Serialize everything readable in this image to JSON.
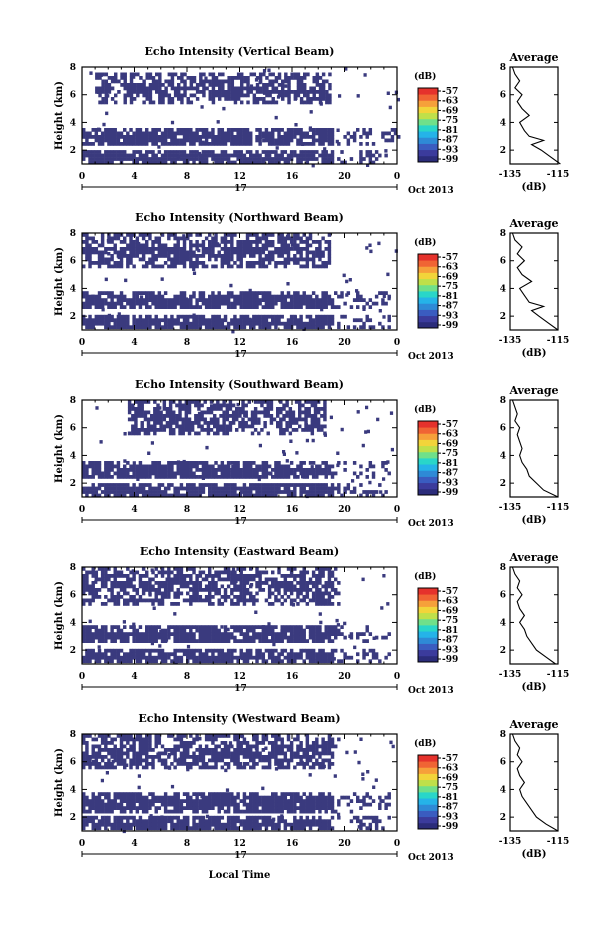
{
  "figure": {
    "xlabel": "Local Time",
    "day_label": "17",
    "month_label": "Oct 2013"
  },
  "colorbar": {
    "unit": "(dB)",
    "ticks": [
      "-57",
      "-63",
      "-69",
      "-75",
      "-81",
      "-87",
      "-93",
      "-99"
    ],
    "colors": [
      "#2b2c7a",
      "#3b3b9c",
      "#3a5cc0",
      "#2e8ad6",
      "#25b3e8",
      "#29d6c9",
      "#6fe08a",
      "#bfe04a",
      "#f2d43a",
      "#f6a03a",
      "#f06434",
      "#e5322c"
    ]
  },
  "panels": [
    {
      "title": "Echo Intensity (Vertical Beam)",
      "seed": 11
    },
    {
      "title": "Echo Intensity (Northward Beam)",
      "seed": 23
    },
    {
      "title": "Echo Intensity (Southward Beam)",
      "seed": 37
    },
    {
      "title": "Echo Intensity (Eastward Beam)",
      "seed": 41
    },
    {
      "title": "Echo Intensity (Westward Beam)",
      "seed": 53
    }
  ],
  "chart_data": [
    {
      "type": "heatmap",
      "title": "Echo Intensity (Vertical Beam)",
      "xlabel": "Local Time",
      "ylabel": "Height (km)",
      "xlim": [
        0,
        24
      ],
      "ylim": [
        1,
        8
      ],
      "xticks": [
        "0",
        "4",
        "8",
        "12",
        "16",
        "20",
        "0"
      ],
      "yticks": [
        "2",
        "4",
        "6",
        "8"
      ],
      "colorbar": {
        "label": "(dB)",
        "range": [
          -99,
          -57
        ]
      },
      "layers": [
        {
          "name": "upper echo layer",
          "height_km": [
            5.4,
            7.6
          ],
          "time_h": [
            1,
            18.8
          ],
          "value_db": -99
        },
        {
          "name": "middle echo layer",
          "height_km": [
            2.4,
            3.6
          ],
          "time_h": [
            0,
            24
          ],
          "value_db": -99
        },
        {
          "name": "lower echo layer",
          "height_km": [
            1.2,
            2.0
          ],
          "time_h": [
            0,
            23.5
          ],
          "value_db": -99
        }
      ],
      "average_profile": {
        "title": "Average",
        "xlabel": "(dB)",
        "xlim": [
          -135,
          -115
        ],
        "ylim": [
          1,
          8
        ],
        "xticks": [
          "-135",
          "-115"
        ],
        "yticks": [
          "2",
          "4",
          "6",
          "8"
        ],
        "height_km": [
          1,
          1.5,
          2,
          2.4,
          2.7,
          3.0,
          3.4,
          4.0,
          4.5,
          5.0,
          5.5,
          6.0,
          6.5,
          7.0,
          7.5,
          8.0
        ],
        "value_db": [
          -114,
          -118,
          -122,
          -126,
          -121,
          -127,
          -129,
          -131,
          -127,
          -130,
          -132,
          -130,
          -133,
          -131,
          -133,
          -134
        ]
      }
    },
    {
      "type": "heatmap",
      "title": "Echo Intensity (Northward Beam)",
      "xlabel": "Local Time",
      "ylabel": "Height (km)",
      "xlim": [
        0,
        24
      ],
      "ylim": [
        1,
        8
      ],
      "xticks": [
        "0",
        "4",
        "8",
        "12",
        "16",
        "20",
        "0"
      ],
      "yticks": [
        "2",
        "4",
        "6",
        "8"
      ],
      "colorbar": {
        "label": "(dB)",
        "range": [
          -99,
          -57
        ]
      },
      "layers": [
        {
          "name": "upper echo layer",
          "height_km": [
            5.5,
            8.0
          ],
          "time_h": [
            0,
            18.8
          ],
          "value_db": -99
        },
        {
          "name": "middle echo layer",
          "height_km": [
            2.6,
            3.8
          ],
          "time_h": [
            0,
            23.5
          ],
          "value_db": -99
        },
        {
          "name": "lower echo layer",
          "height_km": [
            1.2,
            2.1
          ],
          "time_h": [
            0,
            23.5
          ],
          "value_db": -99
        }
      ],
      "average_profile": {
        "title": "Average",
        "xlabel": "(dB)",
        "xlim": [
          -135,
          -115
        ],
        "ylim": [
          1,
          8
        ],
        "xticks": [
          "-135",
          "-115"
        ],
        "yticks": [
          "2",
          "4",
          "6",
          "8"
        ],
        "height_km": [
          1,
          1.5,
          2,
          2.4,
          2.7,
          3.0,
          3.5,
          4.0,
          4.5,
          5.0,
          5.5,
          6.0,
          6.5,
          7.0,
          7.5,
          8.0
        ],
        "value_db": [
          -115,
          -119,
          -123,
          -126,
          -121,
          -127,
          -129,
          -131,
          -126,
          -130,
          -132,
          -129,
          -132,
          -130,
          -133,
          -134
        ]
      }
    },
    {
      "type": "heatmap",
      "title": "Echo Intensity (Southward Beam)",
      "xlabel": "Local Time",
      "ylabel": "Height (km)",
      "xlim": [
        0,
        24
      ],
      "ylim": [
        1,
        8
      ],
      "xticks": [
        "0",
        "4",
        "8",
        "12",
        "16",
        "20",
        "0"
      ],
      "yticks": [
        "2",
        "4",
        "6",
        "8"
      ],
      "colorbar": {
        "label": "(dB)",
        "range": [
          -99,
          -57
        ]
      },
      "layers": [
        {
          "name": "upper echo layer",
          "height_km": [
            5.6,
            8.0
          ],
          "time_h": [
            3.5,
            18.5
          ],
          "value_db": -99
        },
        {
          "name": "middle echo layer",
          "height_km": [
            2.4,
            3.6
          ],
          "time_h": [
            0,
            23.5
          ],
          "value_db": -99
        },
        {
          "name": "lower echo layer",
          "height_km": [
            1.2,
            2.0
          ],
          "time_h": [
            0,
            23.5
          ],
          "value_db": -99
        }
      ],
      "average_profile": {
        "title": "Average",
        "xlabel": "(dB)",
        "xlim": [
          -135,
          -115
        ],
        "ylim": [
          1,
          8
        ],
        "xticks": [
          "-135",
          "-115"
        ],
        "yticks": [
          "2",
          "4",
          "6",
          "8"
        ],
        "height_km": [
          1,
          1.5,
          2,
          2.5,
          3.0,
          3.5,
          4.0,
          4.5,
          5.0,
          5.5,
          6.0,
          6.5,
          7.0,
          7.5,
          8.0
        ],
        "value_db": [
          -115,
          -121,
          -124,
          -127,
          -128,
          -130,
          -131,
          -130,
          -131,
          -132,
          -131,
          -133,
          -132,
          -133,
          -134
        ]
      }
    },
    {
      "type": "heatmap",
      "title": "Echo Intensity (Eastward Beam)",
      "xlabel": "Local Time",
      "ylabel": "Height (km)",
      "xlim": [
        0,
        24
      ],
      "ylim": [
        1,
        8
      ],
      "xticks": [
        "0",
        "4",
        "8",
        "12",
        "16",
        "20",
        "0"
      ],
      "yticks": [
        "2",
        "4",
        "6",
        "8"
      ],
      "colorbar": {
        "label": "(dB)",
        "range": [
          -99,
          -57
        ]
      },
      "layers": [
        {
          "name": "upper echo layer",
          "height_km": [
            5.4,
            8.0
          ],
          "time_h": [
            0,
            19.5
          ],
          "value_db": -99
        },
        {
          "name": "middle echo layer",
          "height_km": [
            2.6,
            3.8
          ],
          "time_h": [
            0,
            23.5
          ],
          "value_db": -99
        },
        {
          "name": "lower echo layer",
          "height_km": [
            1.2,
            2.1
          ],
          "time_h": [
            0,
            23.5
          ],
          "value_db": -99
        }
      ],
      "average_profile": {
        "title": "Average",
        "xlabel": "(dB)",
        "xlim": [
          -135,
          -115
        ],
        "ylim": [
          1,
          8
        ],
        "xticks": [
          "-135",
          "-115"
        ],
        "yticks": [
          "2",
          "4",
          "6",
          "8"
        ],
        "height_km": [
          1,
          1.5,
          2,
          2.5,
          3.0,
          3.5,
          4.0,
          4.5,
          5.0,
          5.5,
          6.0,
          6.5,
          7.0,
          7.5,
          8.0
        ],
        "value_db": [
          -116,
          -120,
          -124,
          -126,
          -128,
          -129,
          -131,
          -129,
          -131,
          -132,
          -130,
          -132,
          -131,
          -133,
          -134
        ]
      }
    },
    {
      "type": "heatmap",
      "title": "Echo Intensity (Westward Beam)",
      "xlabel": "Local Time",
      "ylabel": "Height (km)",
      "xlim": [
        0,
        24
      ],
      "ylim": [
        1,
        8
      ],
      "xticks": [
        "0",
        "4",
        "8",
        "12",
        "16",
        "20",
        "0"
      ],
      "yticks": [
        "2",
        "4",
        "6",
        "8"
      ],
      "colorbar": {
        "label": "(dB)",
        "range": [
          -99,
          -57
        ]
      },
      "layers": [
        {
          "name": "upper echo layer",
          "height_km": [
            5.5,
            8.0
          ],
          "time_h": [
            0,
            19.5
          ],
          "value_db": -99
        },
        {
          "name": "middle echo layer",
          "height_km": [
            2.5,
            3.8
          ],
          "time_h": [
            0,
            23.5
          ],
          "value_db": -99
        },
        {
          "name": "lower echo layer",
          "height_km": [
            1.2,
            2.1
          ],
          "time_h": [
            0,
            23.5
          ],
          "value_db": -99
        }
      ],
      "average_profile": {
        "title": "Average",
        "xlabel": "(dB)",
        "xlim": [
          -135,
          -115
        ],
        "ylim": [
          1,
          8
        ],
        "xticks": [
          "-135",
          "-115"
        ],
        "yticks": [
          "2",
          "4",
          "6",
          "8"
        ],
        "height_km": [
          1,
          1.5,
          2,
          2.5,
          3.0,
          3.5,
          4.0,
          4.5,
          5.0,
          5.5,
          6.0,
          6.5,
          7.0,
          7.5,
          8.0
        ],
        "value_db": [
          -115,
          -120,
          -124,
          -126,
          -128,
          -130,
          -131,
          -129,
          -131,
          -132,
          -130,
          -132,
          -131,
          -133,
          -134
        ]
      }
    }
  ]
}
